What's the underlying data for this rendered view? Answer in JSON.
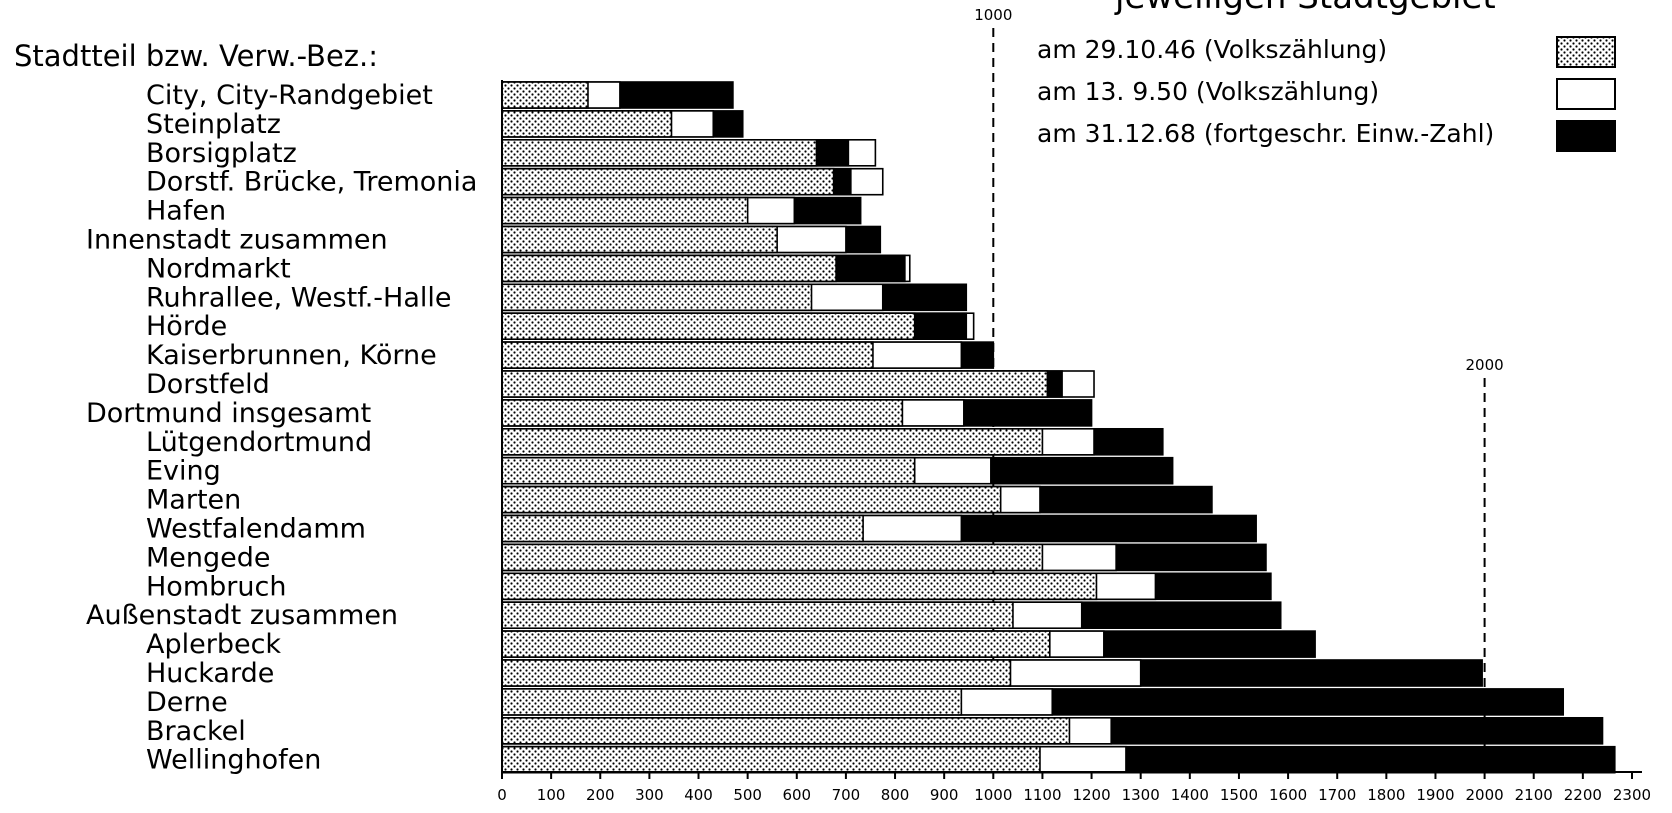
{
  "chart_data": {
    "type": "bar",
    "orientation": "horizontal",
    "stacking": "overlaid-cumulative",
    "title": "jeweiligen Stadtgebiet",
    "ylabel": "Stadtteil  bzw. Verw.-Bez.:",
    "xlim": [
      0,
      2300
    ],
    "xticks": [
      0,
      100,
      200,
      300,
      400,
      500,
      600,
      700,
      800,
      900,
      1000,
      1100,
      1200,
      1300,
      1400,
      1500,
      1600,
      1700,
      1800,
      1900,
      2000,
      2100,
      2200,
      2300
    ],
    "reference_lines": [
      {
        "value": 1000,
        "label": "1000"
      },
      {
        "value": 2000,
        "label": "2000"
      }
    ],
    "legend_position": "top-right",
    "series": [
      {
        "name": "am 29.10.46 (Volkszählung)",
        "pattern": "dotted",
        "color": "#000000"
      },
      {
        "name": "am 13.  9.50 (Volkszählung)",
        "pattern": "empty",
        "color": "#ffffff"
      },
      {
        "name": "am 31.12.68 (fortgeschr. Einw.-Zahl)",
        "pattern": "solid",
        "color": "#000000"
      }
    ],
    "categories": [
      {
        "name": "City, City-Randgebiet",
        "indent": 1,
        "v46": 175,
        "v50": 240,
        "v68": 470
      },
      {
        "name": "Steinplatz",
        "indent": 1,
        "v46": 345,
        "v50": 430,
        "v68": 490
      },
      {
        "name": "Borsigplatz",
        "indent": 1,
        "v46": 640,
        "v50": 760,
        "v68": 705
      },
      {
        "name": "Dorstf. Brücke, Tremonia",
        "indent": 1,
        "v46": 675,
        "v50": 775,
        "v68": 710
      },
      {
        "name": "Hafen",
        "indent": 1,
        "v46": 500,
        "v50": 595,
        "v68": 730
      },
      {
        "name": "Innenstadt zusammen",
        "indent": 0,
        "v46": 560,
        "v50": 700,
        "v68": 770
      },
      {
        "name": "Nordmarkt",
        "indent": 1,
        "v46": 680,
        "v50": 830,
        "v68": 820
      },
      {
        "name": "Ruhrallee, Westf.-Halle",
        "indent": 1,
        "v46": 630,
        "v50": 775,
        "v68": 945
      },
      {
        "name": "Hörde",
        "indent": 1,
        "v46": 840,
        "v50": 960,
        "v68": 945
      },
      {
        "name": "Kaiserbrunnen, Körne",
        "indent": 1,
        "v46": 755,
        "v50": 935,
        "v68": 1000
      },
      {
        "name": "Dorstfeld",
        "indent": 1,
        "v46": 1110,
        "v50": 1205,
        "v68": 1140
      },
      {
        "name": "Dortmund insgesamt",
        "indent": 0,
        "v46": 815,
        "v50": 940,
        "v68": 1200
      },
      {
        "name": "Lütgendortmund",
        "indent": 1,
        "v46": 1100,
        "v50": 1205,
        "v68": 1345
      },
      {
        "name": "Eving",
        "indent": 1,
        "v46": 840,
        "v50": 995,
        "v68": 1365
      },
      {
        "name": "Marten",
        "indent": 1,
        "v46": 1015,
        "v50": 1095,
        "v68": 1445
      },
      {
        "name": "Westfalendamm",
        "indent": 1,
        "v46": 735,
        "v50": 935,
        "v68": 1535
      },
      {
        "name": "Mengede",
        "indent": 1,
        "v46": 1100,
        "v50": 1250,
        "v68": 1555
      },
      {
        "name": "Hombruch",
        "indent": 1,
        "v46": 1210,
        "v50": 1330,
        "v68": 1565
      },
      {
        "name": "Außenstadt zusammen",
        "indent": 0,
        "v46": 1040,
        "v50": 1180,
        "v68": 1585
      },
      {
        "name": "Aplerbeck",
        "indent": 1,
        "v46": 1115,
        "v50": 1225,
        "v68": 1655
      },
      {
        "name": "Huckarde",
        "indent": 1,
        "v46": 1035,
        "v50": 1300,
        "v68": 1995
      },
      {
        "name": "Derne",
        "indent": 1,
        "v46": 935,
        "v50": 1120,
        "v68": 2160
      },
      {
        "name": "Brackel",
        "indent": 1,
        "v46": 1155,
        "v50": 1240,
        "v68": 2240
      },
      {
        "name": "Wellinghofen",
        "indent": 1,
        "v46": 1095,
        "v50": 1270,
        "v68": 2265
      }
    ]
  },
  "legend": {
    "item1": "am 29.10.46 (Volkszählung)",
    "item2": "am 13.  9.50 (Volkszählung)",
    "item3": "am 31.12.68 (fortgeschr. Einw.-Zahl)"
  },
  "header": {
    "title": "jeweiligen Stadtgebiet",
    "row_header": "Stadtteil  bzw. Verw.-Bez.:"
  }
}
